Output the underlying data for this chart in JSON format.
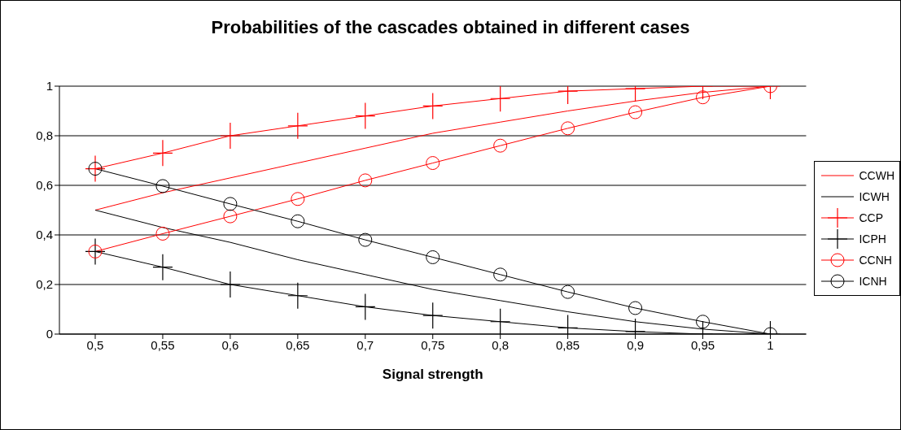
{
  "chart_data": {
    "type": "line",
    "title": "Probabilities of the cascades obtained in different cases",
    "xlabel": "Signal strength",
    "categories": [
      "0,5",
      "0,55",
      "0,6",
      "0,65",
      "0,7",
      "0,75",
      "0,8",
      "0,85",
      "0,9",
      "0,95",
      "1"
    ],
    "series": [
      {
        "name": "CCWH",
        "color": "#ff0000",
        "marker": "none",
        "values": [
          0.5,
          0.57,
          0.63,
          0.69,
          0.75,
          0.81,
          0.855,
          0.9,
          0.94,
          0.975,
          1
        ]
      },
      {
        "name": "ICWH",
        "color": "#000000",
        "marker": "none",
        "values": [
          0.5,
          0.43,
          0.37,
          0.3,
          0.24,
          0.18,
          0.135,
          0.09,
          0.05,
          0.02,
          0
        ]
      },
      {
        "name": "CCP",
        "color": "#ff0000",
        "marker": "cross",
        "values": [
          0.667,
          0.73,
          0.8,
          0.84,
          0.88,
          0.92,
          0.95,
          0.98,
          0.99,
          1,
          1
        ]
      },
      {
        "name": "ICPH",
        "color": "#000000",
        "marker": "cross",
        "values": [
          0.333,
          0.27,
          0.2,
          0.155,
          0.11,
          0.075,
          0.05,
          0.025,
          0.01,
          0,
          0
        ]
      },
      {
        "name": "CCNH",
        "color": "#ff0000",
        "marker": "circle",
        "values": [
          0.333,
          0.405,
          0.475,
          0.545,
          0.62,
          0.69,
          0.76,
          0.83,
          0.895,
          0.955,
          1
        ]
      },
      {
        "name": "ICNH",
        "color": "#000000",
        "marker": "circle",
        "values": [
          0.667,
          0.597,
          0.525,
          0.455,
          0.38,
          0.31,
          0.24,
          0.17,
          0.105,
          0.05,
          0
        ]
      }
    ],
    "ylim": [
      0,
      1
    ],
    "yticks": [
      0,
      {
        "value": 0.2,
        "label": "0,2"
      },
      {
        "value": 0.4,
        "label": "0,4"
      },
      {
        "value": 0.6,
        "label": "0,6"
      },
      {
        "value": 0.8,
        "label": "0,8"
      },
      1
    ],
    "grid": "y",
    "legend": "right",
    "line_style": "solid"
  }
}
